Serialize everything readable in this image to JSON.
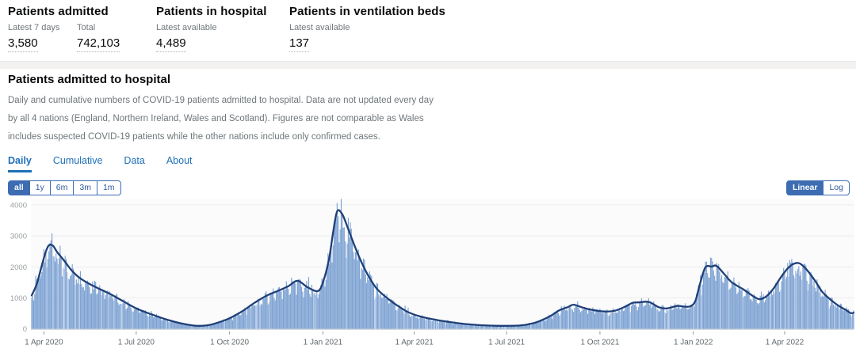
{
  "stats": [
    {
      "title": "Patients admitted",
      "metrics": [
        {
          "label": "Latest 7 days",
          "value": "3,580"
        },
        {
          "label": "Total",
          "value": "742,103"
        }
      ]
    },
    {
      "title": "Patients in hospital",
      "metrics": [
        {
          "label": "Latest available",
          "value": "4,489"
        }
      ]
    },
    {
      "title": "Patients in ventilation beds",
      "metrics": [
        {
          "label": "Latest available",
          "value": "137"
        }
      ]
    }
  ],
  "section": {
    "title": "Patients admitted to hospital",
    "description": "Daily and cumulative numbers of COVID-19 patients admitted to hospital. Data are not updated every day by all 4 nations (England, Northern Ireland, Wales and Scotland). Figures are not comparable as Wales includes suspected COVID-19 patients while the other nations include only confirmed cases."
  },
  "tabs": [
    {
      "label": "Daily",
      "active": true
    },
    {
      "label": "Cumulative",
      "active": false
    },
    {
      "label": "Data",
      "active": false
    },
    {
      "label": "About",
      "active": false
    }
  ],
  "ranges": [
    {
      "label": "all",
      "active": true
    },
    {
      "label": "1y",
      "active": false
    },
    {
      "label": "6m",
      "active": false
    },
    {
      "label": "3m",
      "active": false
    },
    {
      "label": "1m",
      "active": false
    }
  ],
  "scales": [
    {
      "label": "Linear",
      "active": true
    },
    {
      "label": "Log",
      "active": false
    }
  ],
  "colors": {
    "accent_blue": "#1d70b8",
    "button_blue": "#3d6cb2",
    "bar_fill": "#7fa3d3",
    "bar_fill_light": "#aec7e6",
    "line": "#1f3f77",
    "grid": "#ededee",
    "baseline": "#c9cdd1",
    "axis_text": "#626a6e",
    "y_axis_text": "#9aa0a3",
    "plot_bg": "#fbfbfc"
  },
  "chart_data": {
    "type": "bar",
    "title": "Patients admitted to hospital (Daily)",
    "xlabel": "",
    "ylabel": "",
    "ylim": [
      0,
      4300
    ],
    "grid": true,
    "y_ticks": [
      0,
      1000,
      2000,
      3000,
      4000
    ],
    "x_ticks": [
      {
        "date": "2020-04-01",
        "label": "1 Apr 2020"
      },
      {
        "date": "2020-07-01",
        "label": "1 Jul 2020"
      },
      {
        "date": "2020-10-01",
        "label": "1 Oct 2020"
      },
      {
        "date": "2021-01-01",
        "label": "1 Jan 2021"
      },
      {
        "date": "2021-04-01",
        "label": "1 Apr 2021"
      },
      {
        "date": "2021-07-01",
        "label": "1 Jul 2021"
      },
      {
        "date": "2021-10-01",
        "label": "1 Oct 2021"
      },
      {
        "date": "2022-01-01",
        "label": "1 Jan 2022"
      },
      {
        "date": "2022-04-01",
        "label": "1 Apr 2022"
      }
    ],
    "series": [
      {
        "name": "Daily admissions (bars)",
        "derived_from": "7-day rolling average with daily reporting noise",
        "noise": {
          "seed": 42,
          "factor_min": 0.85,
          "factor_span": 0.3,
          "spike_factor": 1.12,
          "cap": 4280
        }
      },
      {
        "name": "7-day rolling average (line)",
        "points": [
          [
            "2020-03-20",
            1080
          ],
          [
            "2020-03-25",
            1450
          ],
          [
            "2020-03-30",
            2050
          ],
          [
            "2020-04-03",
            2500
          ],
          [
            "2020-04-06",
            2700
          ],
          [
            "2020-04-10",
            2680
          ],
          [
            "2020-04-14",
            2480
          ],
          [
            "2020-04-21",
            2200
          ],
          [
            "2020-04-28",
            1900
          ],
          [
            "2020-05-06",
            1650
          ],
          [
            "2020-05-16",
            1450
          ],
          [
            "2020-05-25",
            1300
          ],
          [
            "2020-06-05",
            1130
          ],
          [
            "2020-06-16",
            930
          ],
          [
            "2020-07-01",
            660
          ],
          [
            "2020-07-16",
            470
          ],
          [
            "2020-07-31",
            300
          ],
          [
            "2020-08-14",
            180
          ],
          [
            "2020-08-28",
            105
          ],
          [
            "2020-09-10",
            120
          ],
          [
            "2020-09-22",
            230
          ],
          [
            "2020-10-02",
            360
          ],
          [
            "2020-10-14",
            580
          ],
          [
            "2020-10-25",
            830
          ],
          [
            "2020-11-07",
            1080
          ],
          [
            "2020-11-18",
            1230
          ],
          [
            "2020-11-28",
            1380
          ],
          [
            "2020-12-07",
            1550
          ],
          [
            "2020-12-17",
            1340
          ],
          [
            "2020-12-27",
            1220
          ],
          [
            "2021-01-01",
            1500
          ],
          [
            "2021-01-07",
            2250
          ],
          [
            "2021-01-11",
            3100
          ],
          [
            "2021-01-15",
            3790
          ],
          [
            "2021-01-20",
            3700
          ],
          [
            "2021-01-25",
            3300
          ],
          [
            "2021-02-01",
            2700
          ],
          [
            "2021-02-08",
            2150
          ],
          [
            "2021-02-15",
            1700
          ],
          [
            "2021-02-23",
            1300
          ],
          [
            "2021-03-05",
            1000
          ],
          [
            "2021-03-15",
            760
          ],
          [
            "2021-03-26",
            540
          ],
          [
            "2021-04-07",
            400
          ],
          [
            "2021-04-21",
            300
          ],
          [
            "2021-05-04",
            230
          ],
          [
            "2021-05-20",
            160
          ],
          [
            "2021-06-05",
            120
          ],
          [
            "2021-06-24",
            100
          ],
          [
            "2021-07-14",
            110
          ],
          [
            "2021-07-27",
            180
          ],
          [
            "2021-08-06",
            300
          ],
          [
            "2021-08-14",
            430
          ],
          [
            "2021-08-22",
            600
          ],
          [
            "2021-08-30",
            700
          ],
          [
            "2021-09-05",
            780
          ],
          [
            "2021-09-13",
            700
          ],
          [
            "2021-09-22",
            620
          ],
          [
            "2021-10-06",
            560
          ],
          [
            "2021-10-16",
            590
          ],
          [
            "2021-10-26",
            720
          ],
          [
            "2021-11-02",
            840
          ],
          [
            "2021-11-08",
            855
          ],
          [
            "2021-11-18",
            870
          ],
          [
            "2021-11-28",
            700
          ],
          [
            "2021-12-06",
            660
          ],
          [
            "2021-12-16",
            740
          ],
          [
            "2021-12-23",
            720
          ],
          [
            "2021-12-29",
            730
          ],
          [
            "2022-01-03",
            900
          ],
          [
            "2022-01-08",
            1500
          ],
          [
            "2022-01-13",
            1990
          ],
          [
            "2022-01-19",
            2010
          ],
          [
            "2022-01-24",
            2030
          ],
          [
            "2022-02-01",
            1750
          ],
          [
            "2022-02-08",
            1500
          ],
          [
            "2022-02-19",
            1280
          ],
          [
            "2022-02-27",
            1100
          ],
          [
            "2022-03-07",
            960
          ],
          [
            "2022-03-14",
            1050
          ],
          [
            "2022-03-21",
            1300
          ],
          [
            "2022-03-28",
            1650
          ],
          [
            "2022-04-04",
            1950
          ],
          [
            "2022-04-10",
            2100
          ],
          [
            "2022-04-16",
            2110
          ],
          [
            "2022-04-23",
            1900
          ],
          [
            "2022-05-01",
            1550
          ],
          [
            "2022-05-08",
            1200
          ],
          [
            "2022-05-16",
            950
          ],
          [
            "2022-05-24",
            750
          ],
          [
            "2022-06-01",
            600
          ],
          [
            "2022-06-05",
            510
          ],
          [
            "2022-06-08",
            520
          ]
        ]
      }
    ]
  }
}
